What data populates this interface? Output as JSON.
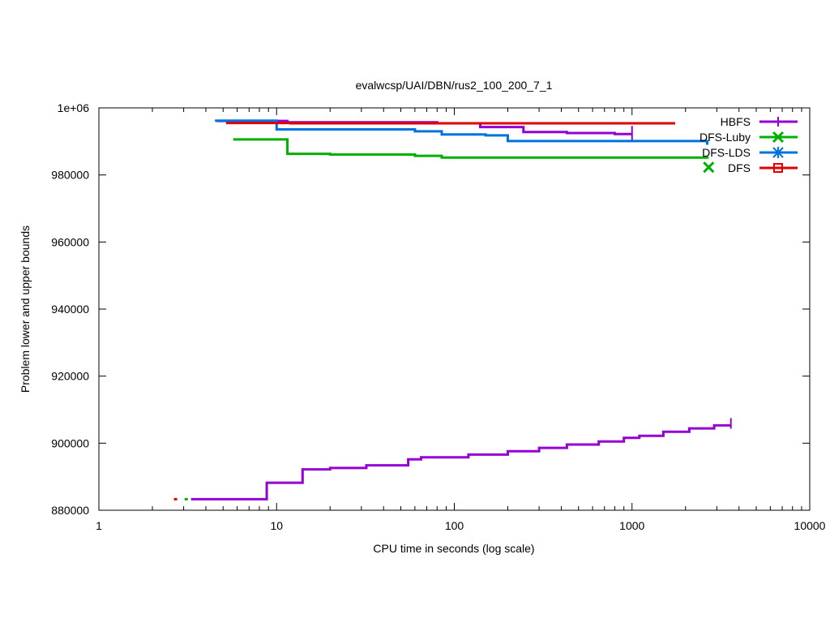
{
  "chart_data": {
    "type": "line",
    "title": "evalwcsp/UAI/DBN/rus2_100_200_7_1",
    "xlabel": "CPU time in seconds (log scale)",
    "ylabel": "Problem lower and upper bounds",
    "x_scale": "log",
    "xlim": [
      1,
      10000
    ],
    "ylim": [
      880000,
      1000000
    ],
    "x_ticks": [
      1,
      10,
      100,
      1000,
      10000
    ],
    "x_tick_labels": [
      "1",
      "10",
      "100",
      "1000",
      "10000"
    ],
    "y_ticks": [
      880000,
      900000,
      920000,
      940000,
      960000,
      980000,
      1000000
    ],
    "y_tick_labels": [
      "880000",
      "900000",
      "920000",
      "940000",
      "960000",
      "980000",
      "1e+06"
    ],
    "legend_position": "top-right",
    "series": [
      {
        "name": "HBFS",
        "color": "#9400d3",
        "marker": "plus",
        "upper": [
          [
            4.6,
            996100
          ],
          [
            11.5,
            995700
          ],
          [
            80,
            995400
          ],
          [
            140,
            994300
          ],
          [
            245,
            992800
          ],
          [
            430,
            992500
          ],
          [
            800,
            992200
          ],
          [
            1000,
            992200
          ]
        ],
        "upper_end_tick": 1000,
        "lower": [
          [
            3.3,
            883300
          ],
          [
            8.8,
            888200
          ],
          [
            14,
            892200
          ],
          [
            20,
            892600
          ],
          [
            32,
            893400
          ],
          [
            55,
            895200
          ],
          [
            65,
            895800
          ],
          [
            120,
            896600
          ],
          [
            200,
            897600
          ],
          [
            300,
            898600
          ],
          [
            430,
            899600
          ],
          [
            650,
            900500
          ],
          [
            900,
            901600
          ],
          [
            1100,
            902200
          ],
          [
            1500,
            903400
          ],
          [
            2100,
            904400
          ],
          [
            2900,
            905300
          ],
          [
            3600,
            905300
          ]
        ],
        "lower_end_tick": 3600
      },
      {
        "name": "DFS-Luby",
        "color": "#00b000",
        "marker": "x",
        "upper": [
          [
            5.7,
            990600
          ],
          [
            11.5,
            986300
          ],
          [
            20,
            986100
          ],
          [
            60,
            985700
          ],
          [
            85,
            985200
          ],
          [
            2700,
            985200
          ]
        ],
        "lower_dot": [
          3.1,
          883300
        ]
      },
      {
        "name": "DFS-LDS",
        "color": "#0072e0",
        "marker": "star",
        "upper": [
          [
            4.5,
            996200
          ],
          [
            10,
            993600
          ],
          [
            60,
            993000
          ],
          [
            85,
            992100
          ],
          [
            150,
            991800
          ],
          [
            200,
            990100
          ],
          [
            2600,
            990100
          ],
          [
            2650,
            989000
          ]
        ]
      },
      {
        "name": "DFS",
        "color": "#e00000",
        "marker": "square",
        "upper": [
          [
            5.2,
            995500
          ],
          [
            12,
            995400
          ],
          [
            1750,
            995400
          ]
        ],
        "lower_dot": [
          2.7,
          883300
        ]
      }
    ]
  }
}
